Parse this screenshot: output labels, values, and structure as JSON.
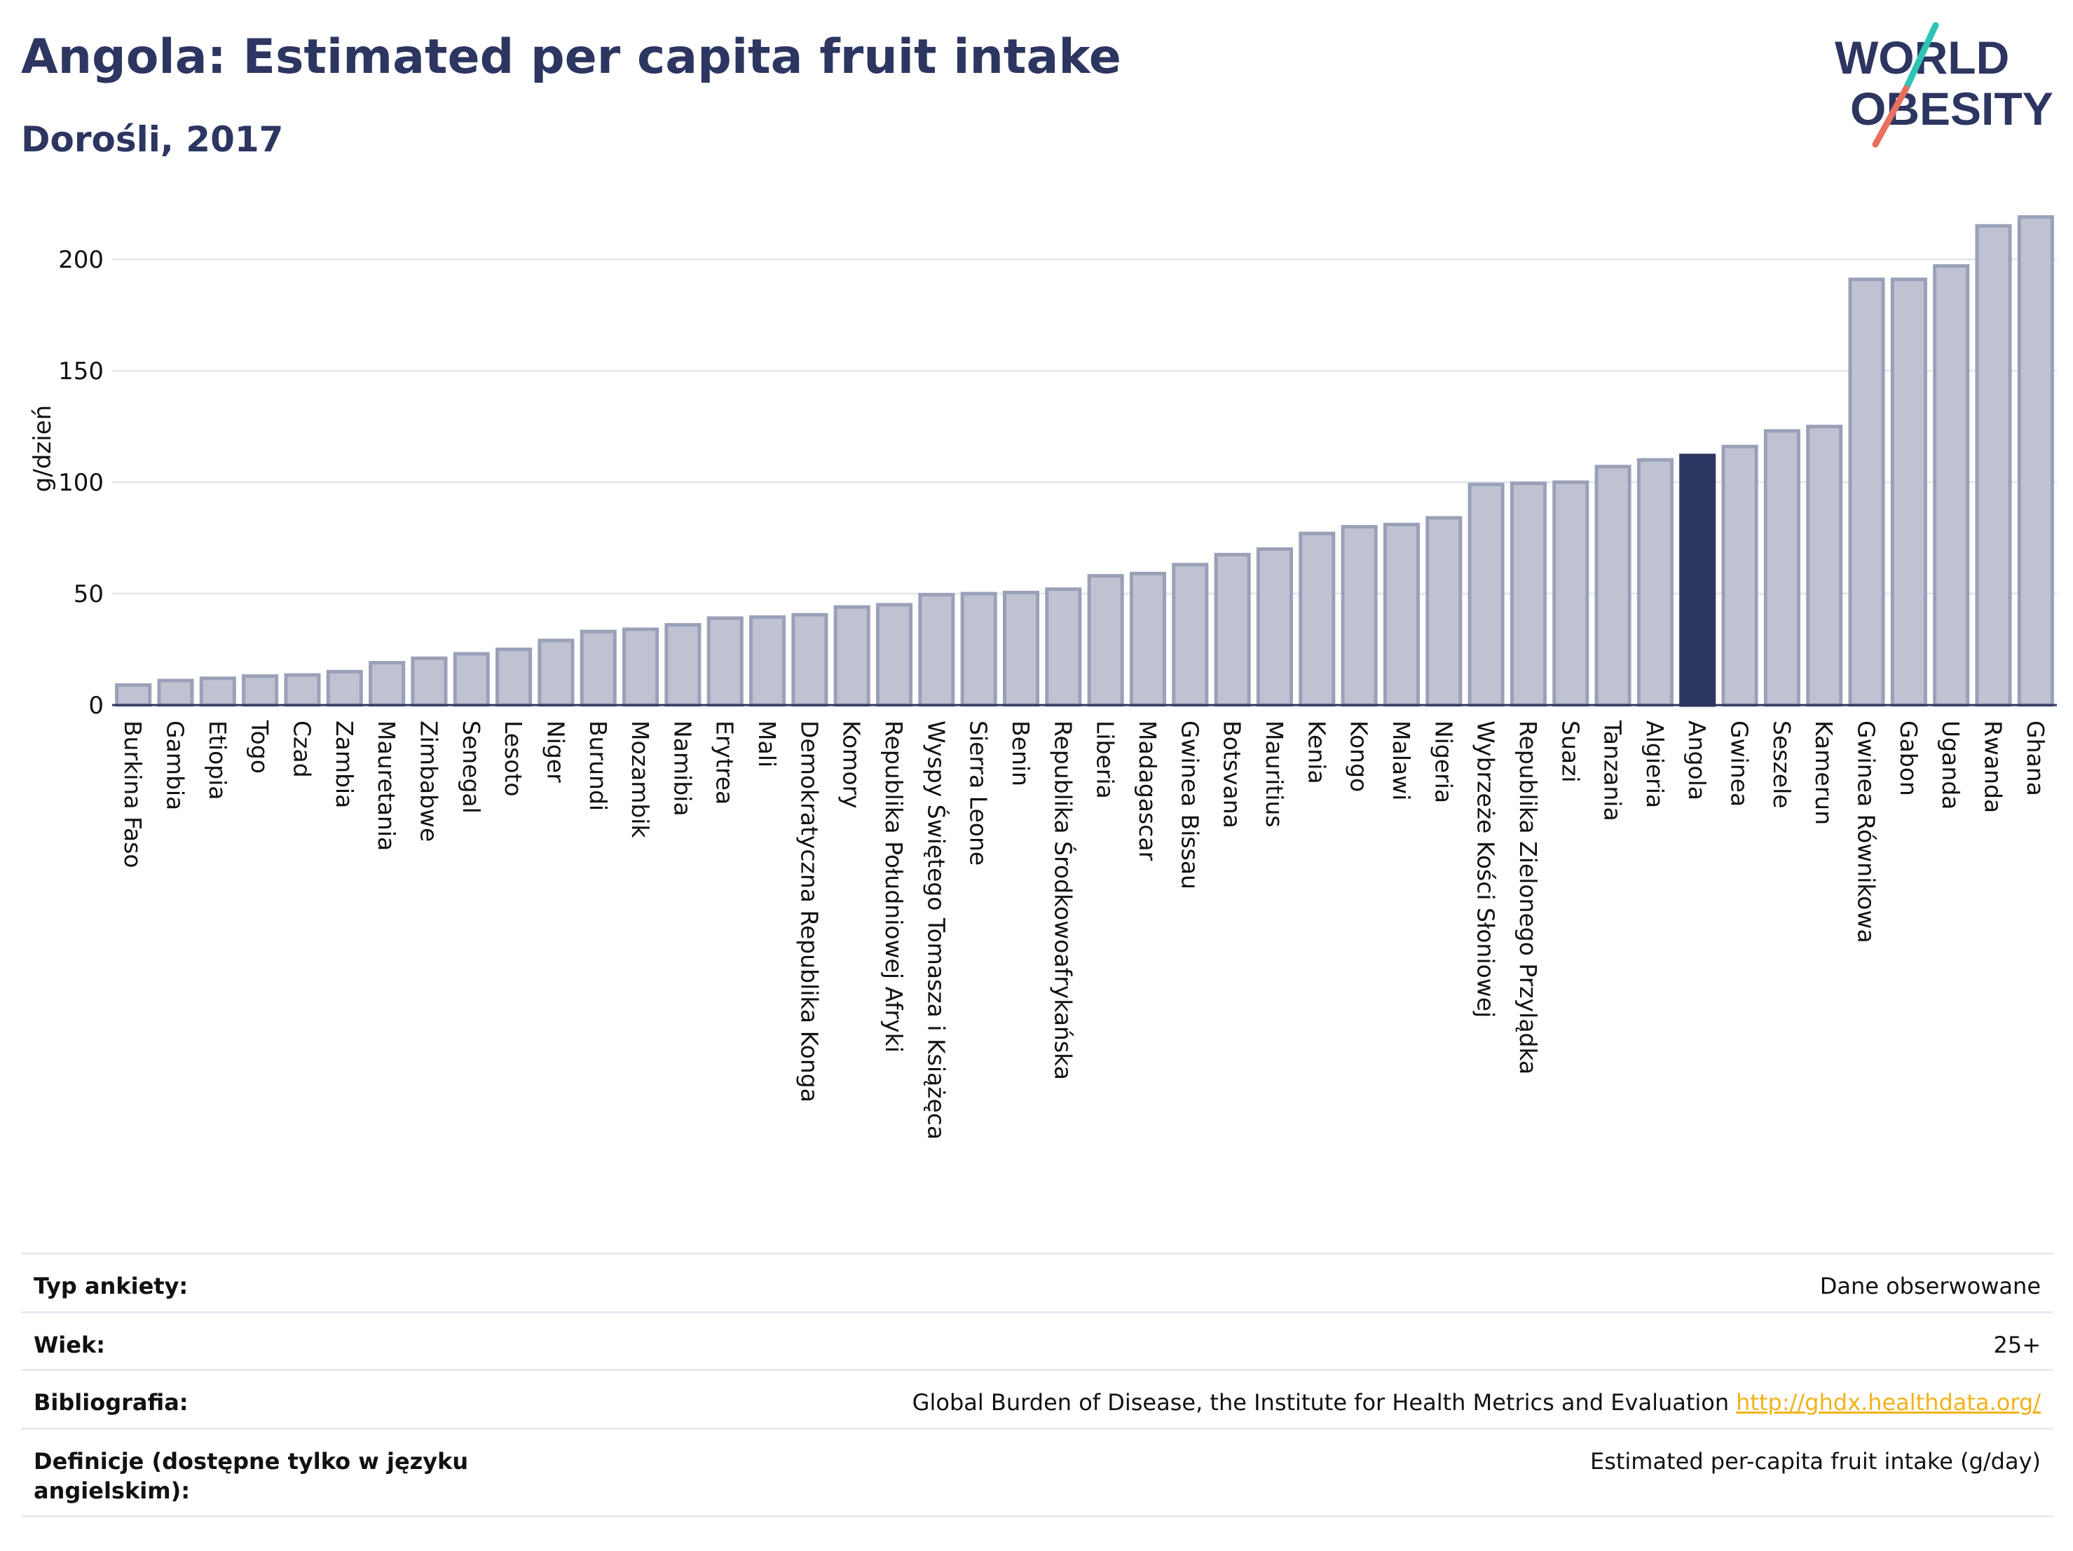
{
  "title": "Angola: Estimated per capita fruit intake",
  "subtitle": "Dorośli, 2017",
  "logo": {
    "line1": "WORLD",
    "line2": "OBESITY",
    "colors": {
      "text": "#2d3561",
      "slash_top": "#2ec4b6",
      "slash_bottom": "#e8705f"
    }
  },
  "colors": {
    "bar": "#bfc3d1",
    "bar_stroke": "#9aa0b8",
    "highlight": "#2d3561",
    "grid": "#e6e8ef",
    "axis": "#2d3561"
  },
  "chart_data": {
    "type": "bar",
    "ylabel": "g/dzień",
    "xlabel": "",
    "ylim": [
      0,
      225
    ],
    "yticks": [
      0,
      50,
      100,
      150,
      200
    ],
    "grid": true,
    "highlight": "Angola",
    "categories": [
      "Burkina Faso",
      "Gambia",
      "Etiopia",
      "Togo",
      "Czad",
      "Zambia",
      "Mauretania",
      "Zimbabwe",
      "Senegal",
      "Lesoto",
      "Niger",
      "Burundi",
      "Mozambik",
      "Namibia",
      "Erytrea",
      "Mali",
      "Demokratyczna Republika Konga",
      "Komory",
      "Republika Południowej Afryki",
      "Wyspy Świętego Tomasza i Książęca",
      "Sierra Leone",
      "Benin",
      "Republika Środkowoafrykańska",
      "Liberia",
      "Madagascar",
      "Gwinea Bissau",
      "Botsvana",
      "Mauritius",
      "Kenia",
      "Kongo",
      "Malawi",
      "Nigeria",
      "Wybrzeże Kości Słoniowej",
      "Republika Zielonego Przylądka",
      "Suazi",
      "Tanzania",
      "Algieria",
      "Angola",
      "Gwinea",
      "Seszele",
      "Kamerun",
      "Gwinea Równikowa",
      "Gabon",
      "Uganda",
      "Rwanda",
      "Ghana"
    ],
    "values": [
      9,
      11,
      12,
      13,
      13.5,
      15,
      19,
      21,
      23,
      25,
      29,
      33,
      34,
      36,
      39,
      39.5,
      40.5,
      44,
      45,
      49.5,
      50,
      50.5,
      52,
      58,
      59,
      63,
      67.5,
      70,
      77,
      80,
      81,
      84,
      99,
      99.5,
      100,
      107,
      110,
      112,
      116,
      123,
      125,
      191,
      191,
      197,
      215,
      219
    ]
  },
  "metadata": [
    {
      "label": "Typ ankiety:",
      "value": "Dane obserwowane"
    },
    {
      "label": "Wiek:",
      "value": "25+"
    },
    {
      "label": "Bibliografia:",
      "value": "Global Burden of Disease, the Institute for Health Metrics and Evaluation",
      "link": "http://ghdx.healthdata.org/"
    },
    {
      "label": "Definicje (dostępne tylko w języku angielskim):",
      "value": "Estimated per-capita fruit intake (g/day)"
    }
  ]
}
